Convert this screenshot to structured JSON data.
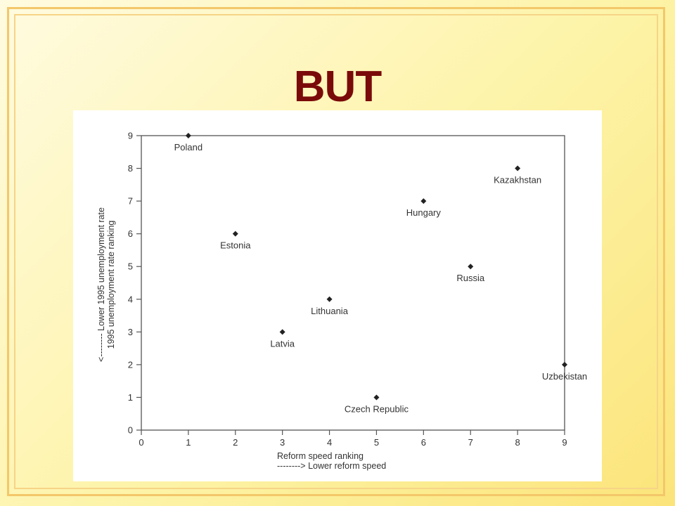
{
  "title": "BUT",
  "chart_data": {
    "type": "scatter",
    "xlabel": "Reform speed ranking",
    "xlabel_note": "--------> Lower reform speed",
    "ylabel": "1995 unemployment rate ranking",
    "ylabel_note": "<-------- Lower 1995 unemployment rate",
    "xlim": [
      0,
      9
    ],
    "ylim": [
      0,
      9
    ],
    "x_ticks": [
      "0",
      "1",
      "2",
      "3",
      "4",
      "5",
      "6",
      "7",
      "8",
      "9"
    ],
    "y_ticks": [
      "0",
      "1",
      "2",
      "3",
      "4",
      "5",
      "6",
      "7",
      "8",
      "9"
    ],
    "grid": false,
    "points": [
      {
        "label": "Poland",
        "x": 1,
        "y": 9
      },
      {
        "label": "Estonia",
        "x": 2,
        "y": 6
      },
      {
        "label": "Latvia",
        "x": 3,
        "y": 3
      },
      {
        "label": "Lithuania",
        "x": 4,
        "y": 4
      },
      {
        "label": "Czech Republic",
        "x": 5,
        "y": 1
      },
      {
        "label": "Hungary",
        "x": 6,
        "y": 7
      },
      {
        "label": "Russia",
        "x": 7,
        "y": 5
      },
      {
        "label": "Kazakhstan",
        "x": 8,
        "y": 8
      },
      {
        "label": "Uzbekistan",
        "x": 9,
        "y": 2
      }
    ]
  }
}
